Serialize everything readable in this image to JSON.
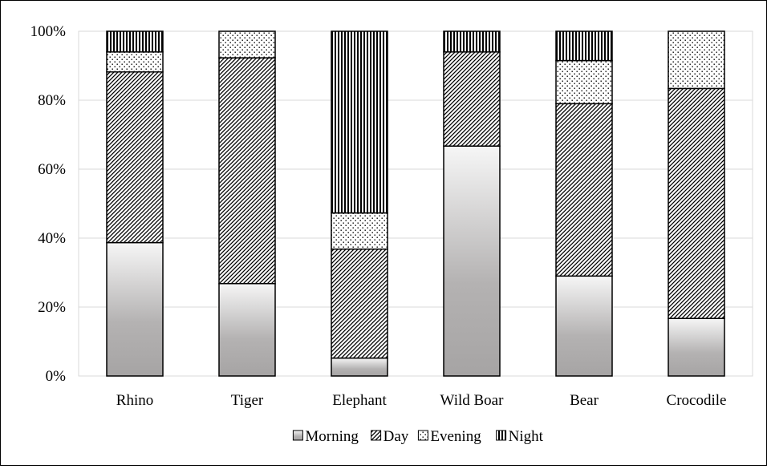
{
  "chart_data": {
    "type": "bar",
    "stacked": true,
    "categories": [
      "Rhino",
      "Tiger",
      "Elephant",
      "Wild Boar",
      "Bear",
      "Crocodile"
    ],
    "series": [
      {
        "name": "Morning",
        "values": [
          38.7,
          26.8,
          5.2,
          66.7,
          29.0,
          16.7
        ]
      },
      {
        "name": "Day",
        "values": [
          49.5,
          65.5,
          31.6,
          27.3,
          50.0,
          66.7
        ]
      },
      {
        "name": "Evening",
        "values": [
          5.8,
          7.7,
          10.5,
          0.0,
          12.5,
          16.6
        ]
      },
      {
        "name": "Night",
        "values": [
          6.0,
          0.0,
          52.7,
          6.0,
          8.5,
          0.0
        ]
      }
    ],
    "yticks": [
      "0%",
      "20%",
      "40%",
      "60%",
      "80%",
      "100%"
    ],
    "ylim": [
      0,
      100
    ],
    "grid": true,
    "legend_position": "bottom",
    "xlabel": "",
    "ylabel": ""
  }
}
